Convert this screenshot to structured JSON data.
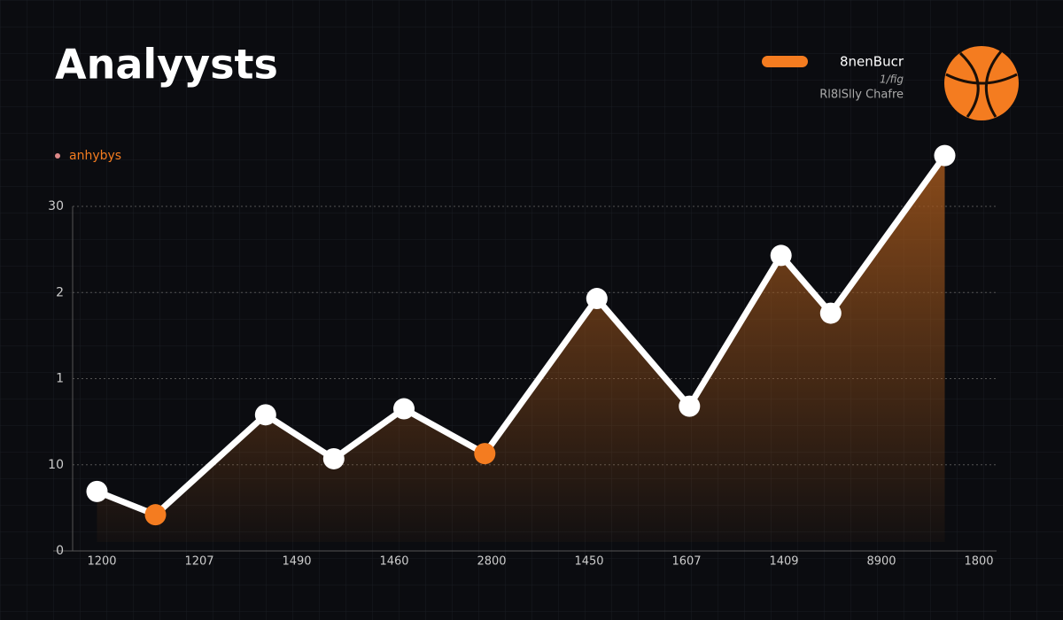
{
  "chart_data": {
    "type": "line",
    "title": "Analyysts",
    "subtitle": "anhybys",
    "legend": {
      "name": "8nenBucr",
      "lines": [
        "1/fig",
        "Rl8lSlly Chafre"
      ],
      "color": "#f47c20"
    },
    "y_labels": [
      "0",
      "10",
      "1",
      "2",
      "30"
    ],
    "x_labels": [
      "1200",
      "1207",
      "1490",
      "1460",
      "2800",
      "1450",
      "1607",
      "1409",
      "8900",
      "1800"
    ],
    "xlim": [
      0,
      10
    ],
    "ylim": [
      0,
      4
    ],
    "grid": true,
    "series": [
      {
        "name": "8nenBucr",
        "color": "#ffffff",
        "x": [
          0.45,
          1.05,
          2.18,
          2.88,
          3.6,
          4.43,
          5.58,
          6.53,
          7.47,
          7.98,
          9.15
        ],
        "values": [
          0.69,
          0.42,
          1.58,
          1.07,
          1.65,
          1.13,
          2.93,
          1.68,
          3.43,
          2.76,
          4.59
        ],
        "marker_colors": [
          "#ffffff",
          "#f47c20",
          "#ffffff",
          "#ffffff",
          "#ffffff",
          "#f47c20",
          "#ffffff",
          "#ffffff",
          "#ffffff",
          "#ffffff",
          "#ffffff"
        ]
      }
    ]
  }
}
